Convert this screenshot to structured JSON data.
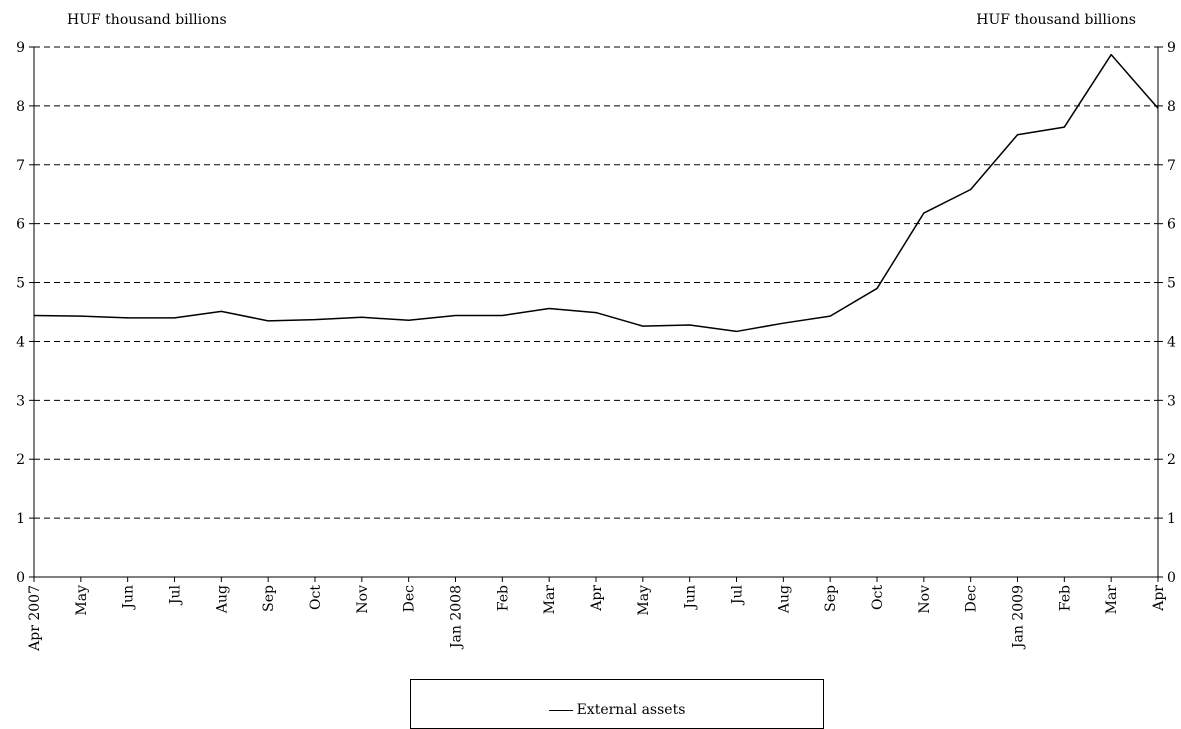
{
  "chart_data": {
    "type": "line",
    "title": "",
    "ylabel_left": "HUF thousand billions",
    "ylabel_right": "HUF thousand billions",
    "ylim": [
      0,
      9
    ],
    "yticks": [
      0,
      1,
      2,
      3,
      4,
      5,
      6,
      7,
      8,
      9
    ],
    "grid": "horizontal-dashed",
    "legend_position": "bottom-center",
    "categories": [
      "Apr 2007",
      "May",
      "Jun",
      "Jul",
      "Aug",
      "Sep",
      "Oct",
      "Nov",
      "Dec",
      "Jan 2008",
      "Feb",
      "Mar",
      "Apr",
      "May",
      "Jun",
      "Jul",
      "Aug",
      "Sep",
      "Oct",
      "Nov",
      "Dec",
      "Jan 2009",
      "Feb",
      "Mar",
      "Apr"
    ],
    "series": [
      {
        "name": "External assets",
        "color": "#000000",
        "values": [
          4.44,
          4.43,
          4.4,
          4.4,
          4.51,
          4.35,
          4.37,
          4.41,
          4.36,
          4.44,
          4.44,
          4.56,
          4.49,
          4.26,
          4.28,
          4.17,
          4.31,
          4.43,
          4.9,
          6.18,
          6.58,
          7.51,
          7.64,
          8.87,
          7.96
        ]
      }
    ]
  }
}
